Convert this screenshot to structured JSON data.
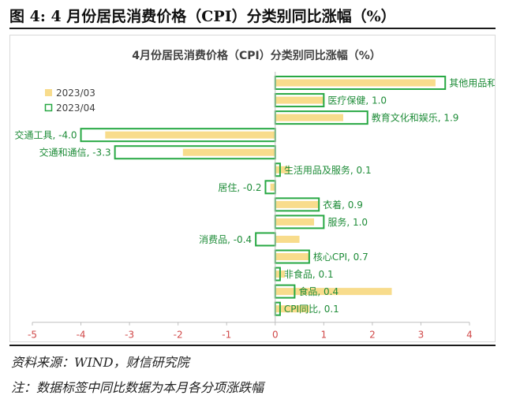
{
  "figure": {
    "caption": "图 4: 4 月份居民消费价格（CPI）分类别同比涨幅（%）",
    "source": "资料来源：WIND，财信研究院",
    "note": "注：数据标签中同比数据为本月各分项涨跌幅"
  },
  "colors": {
    "bar_2023_03": "#f8dc8c",
    "bar_2023_04": "#27a843",
    "label_text": "#1e8c38",
    "axis_text": "#d04848"
  },
  "chart_data": {
    "type": "bar",
    "orientation": "horizontal",
    "title": "4月份居民消费价格（CPI）分类别同比涨幅（%）",
    "legend_position": "top-left",
    "grid": false,
    "xlim": [
      -5,
      4
    ],
    "x_ticks": [
      "-5",
      "-4",
      "-3",
      "-2",
      "-1",
      "0",
      "1",
      "2",
      "3",
      "4"
    ],
    "categories": [
      "其他用品和服务",
      "医疗保健",
      "教育文化和娱乐",
      "交通工具",
      "交通和通信",
      "生活用品及服务",
      "居住",
      "衣着",
      "服务",
      "消费品",
      "核心CPI",
      "非食品",
      "食品",
      "CPI同比"
    ],
    "data_labels": [
      "其他用品和服务, 3.5",
      "医疗保健, 1.0",
      "教育文化和娱乐, 1.9",
      "交通工具, -4.0",
      "交通和通信, -3.3",
      "生活用品及服务, 0.1",
      "居住, -0.2",
      "衣着, 0.9",
      "服务, 1.0",
      "消费品, -0.4",
      "核心CPI, 0.7",
      "非食品, 0.1",
      "食品, 0.4",
      "CPI同比, 0.1"
    ],
    "series": [
      {
        "name": "2023/03",
        "style": "filled",
        "values": [
          3.3,
          1.0,
          1.4,
          -3.5,
          -1.9,
          0.3,
          -0.1,
          0.9,
          0.8,
          0.5,
          0.7,
          0.2,
          2.4,
          0.7
        ]
      },
      {
        "name": "2023/04",
        "style": "outline",
        "values": [
          3.5,
          1.0,
          1.9,
          -4.0,
          -3.3,
          0.1,
          -0.2,
          0.9,
          1.0,
          -0.4,
          0.7,
          0.1,
          0.4,
          0.1
        ]
      }
    ]
  }
}
